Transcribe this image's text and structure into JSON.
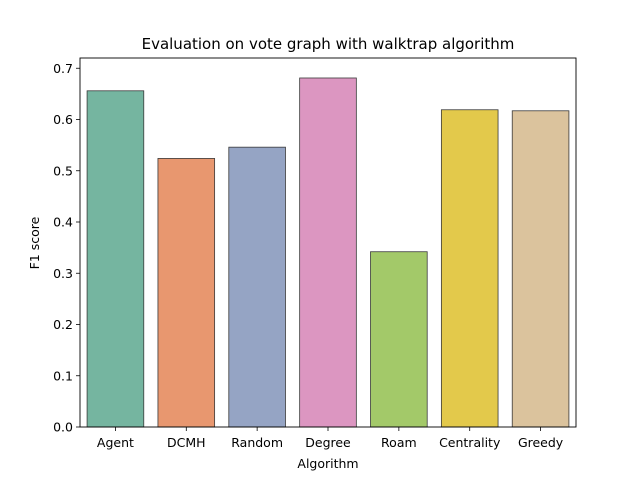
{
  "chart_data": {
    "type": "bar",
    "title": "Evaluation on vote graph with walktrap algorithm",
    "xlabel": "Algorithm",
    "ylabel": "F1 score",
    "categories": [
      "Agent",
      "DCMH",
      "Random",
      "Degree",
      "Roam",
      "Centrality",
      "Greedy"
    ],
    "values": [
      0.656,
      0.524,
      0.546,
      0.681,
      0.342,
      0.619,
      0.617
    ],
    "colors": [
      "#75b5a0",
      "#e8976f",
      "#95a4c4",
      "#dc96c1",
      "#a3c969",
      "#e3c94b",
      "#dbc39d"
    ],
    "ylim": [
      0,
      0.72
    ],
    "yticks": [
      0.0,
      0.1,
      0.2,
      0.3,
      0.4,
      0.5,
      0.6,
      0.7
    ],
    "ytick_labels": [
      "0.0",
      "0.1",
      "0.2",
      "0.3",
      "0.4",
      "0.5",
      "0.6",
      "0.7"
    ],
    "grid": false,
    "legend": "none"
  }
}
